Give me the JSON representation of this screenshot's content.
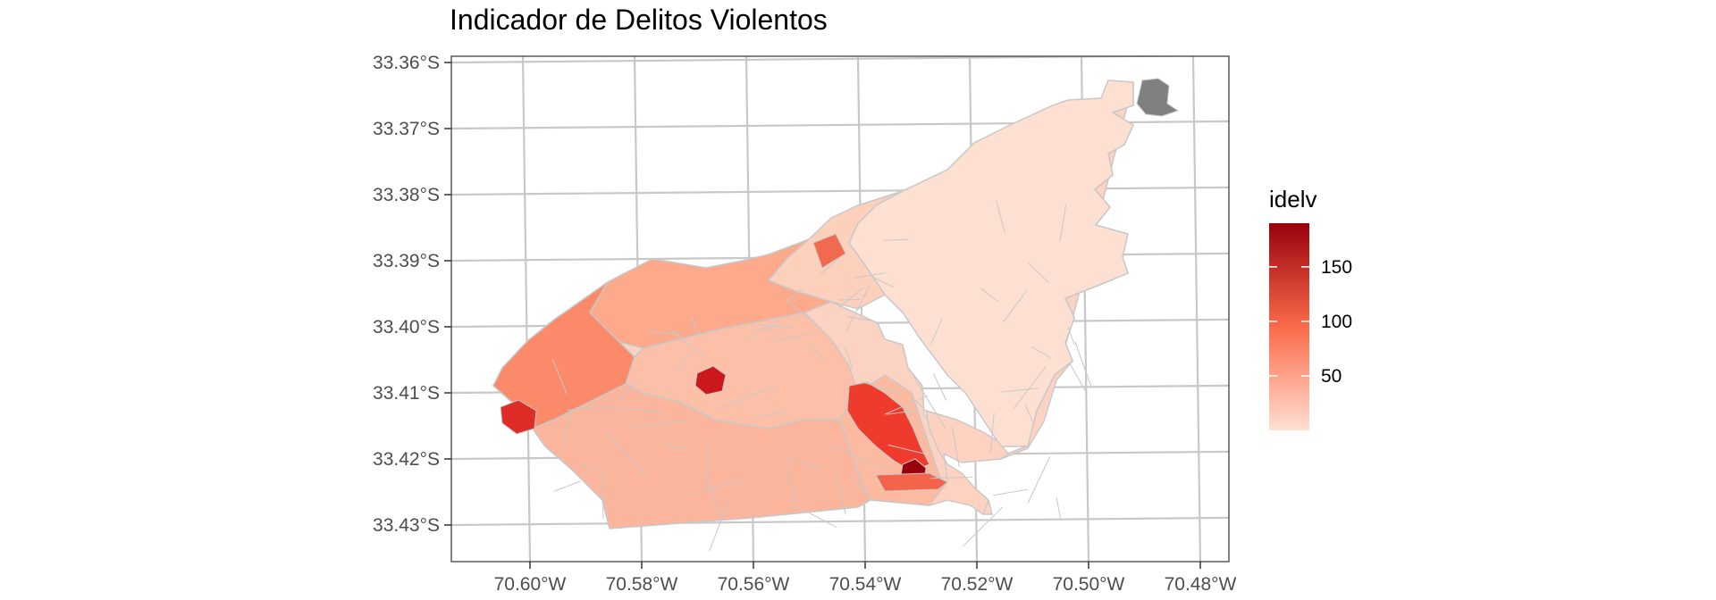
{
  "title": "Indicador de Delitos Violentos",
  "colors": {
    "graticule": "#c8c8c8",
    "frame": "#333333",
    "boundary": "#c8c8c8",
    "missing": "#808080",
    "scale_low": "#fee0d2",
    "scale_mid": "#fb6a4a",
    "scale_high": "#99000d"
  },
  "chart_data": {
    "type": "heatmap",
    "title": "Indicador de Delitos Violentos",
    "map_kind": "choropleth",
    "xlabel": "",
    "ylabel": "",
    "x_ticks": [
      "70.60°W",
      "70.58°W",
      "70.56°W",
      "70.54°W",
      "70.52°W",
      "70.50°W",
      "70.48°W"
    ],
    "y_ticks": [
      "33.36°S",
      "33.37°S",
      "33.38°S",
      "33.39°S",
      "33.40°S",
      "33.41°S",
      "33.42°S",
      "33.43°S"
    ],
    "grid": true,
    "legend": {
      "title": "idelv",
      "placement": "right",
      "breaks": [
        "50",
        "100",
        "150"
      ],
      "range": [
        0,
        190
      ]
    },
    "missing_value_color": "#808080"
  }
}
